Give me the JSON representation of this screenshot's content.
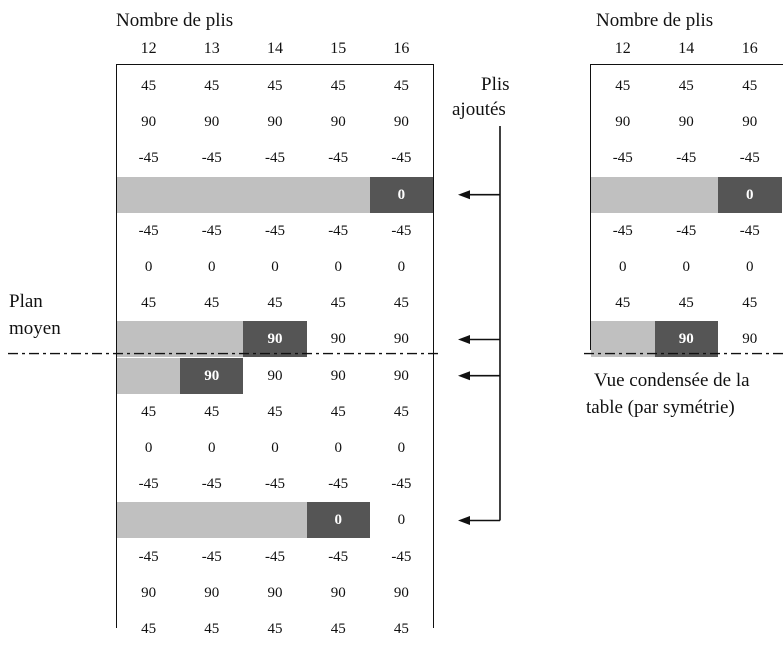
{
  "main_table": {
    "header_label": "Nombre de plis",
    "columns": [
      "12",
      "13",
      "14",
      "15",
      "16"
    ],
    "rows": [
      {
        "type": "values",
        "values": [
          "45",
          "45",
          "45",
          "45",
          "45"
        ]
      },
      {
        "type": "values",
        "values": [
          "90",
          "90",
          "90",
          "90",
          "90"
        ]
      },
      {
        "type": "values",
        "values": [
          "-45",
          "-45",
          "-45",
          "-45",
          "-45"
        ]
      },
      {
        "type": "added",
        "start_col": 4,
        "label": "0",
        "rest": []
      },
      {
        "type": "values",
        "values": [
          "-45",
          "-45",
          "-45",
          "-45",
          "-45"
        ]
      },
      {
        "type": "values",
        "values": [
          "0",
          "0",
          "0",
          "0",
          "0"
        ]
      },
      {
        "type": "values",
        "values": [
          "45",
          "45",
          "45",
          "45",
          "45"
        ]
      },
      {
        "type": "added",
        "start_col": 2,
        "label": "90",
        "rest": [
          "90",
          "90"
        ]
      },
      {
        "type": "added",
        "start_col": 1,
        "label": "90",
        "rest": [
          "90",
          "90",
          "90"
        ]
      },
      {
        "type": "values",
        "values": [
          "45",
          "45",
          "45",
          "45",
          "45"
        ]
      },
      {
        "type": "values",
        "values": [
          "0",
          "0",
          "0",
          "0",
          "0"
        ]
      },
      {
        "type": "values",
        "values": [
          "-45",
          "-45",
          "-45",
          "-45",
          "-45"
        ]
      },
      {
        "type": "added",
        "start_col": 3,
        "label": "0",
        "rest": [
          "0"
        ]
      },
      {
        "type": "values",
        "values": [
          "-45",
          "-45",
          "-45",
          "-45",
          "-45"
        ]
      },
      {
        "type": "values",
        "values": [
          "90",
          "90",
          "90",
          "90",
          "90"
        ]
      },
      {
        "type": "values",
        "values": [
          "45",
          "45",
          "45",
          "45",
          "45"
        ]
      }
    ]
  },
  "condensed_table": {
    "header_label": "Nombre de plis",
    "columns": [
      "12",
      "14",
      "16"
    ],
    "rows": [
      {
        "type": "values",
        "values": [
          "45",
          "45",
          "45"
        ]
      },
      {
        "type": "values",
        "values": [
          "90",
          "90",
          "90"
        ]
      },
      {
        "type": "values",
        "values": [
          "-45",
          "-45",
          "-45"
        ]
      },
      {
        "type": "added",
        "start_col": 2,
        "label": "0",
        "rest": []
      },
      {
        "type": "values",
        "values": [
          "-45",
          "-45",
          "-45"
        ]
      },
      {
        "type": "values",
        "values": [
          "0",
          "0",
          "0"
        ]
      },
      {
        "type": "values",
        "values": [
          "45",
          "45",
          "45"
        ]
      },
      {
        "type": "added",
        "start_col": 1,
        "label": "90",
        "rest": [
          "90"
        ]
      }
    ],
    "caption_line1": "Vue condensée de la",
    "caption_line2": "table (par symétrie)"
  },
  "added_plies_label_line1": "Plis",
  "added_plies_label_line2": "ajoutés",
  "mid_plane_label_line1": "Plan",
  "mid_plane_label_line2": "moyen",
  "arrow_rows": [
    3,
    7,
    8,
    12
  ],
  "colors": {
    "added_bar": "#c0c0c0",
    "new_ply": "#555555",
    "lines": "#111111"
  }
}
